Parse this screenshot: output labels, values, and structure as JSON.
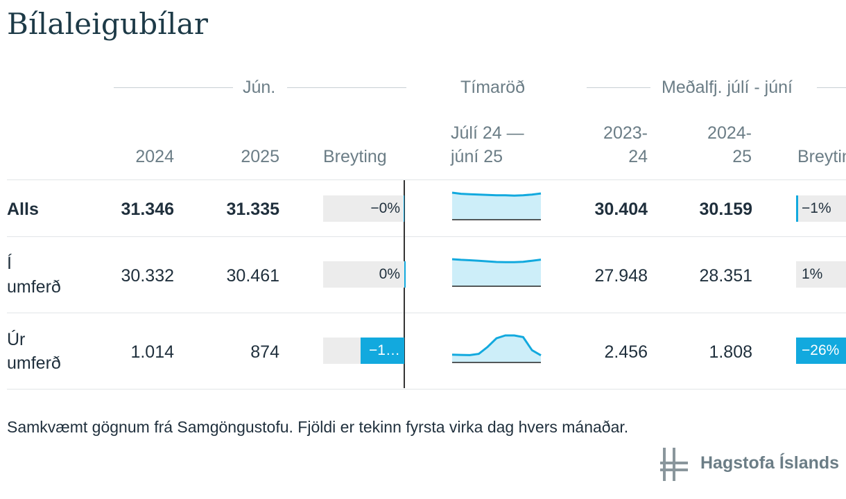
{
  "title": "Bílaleigubílar",
  "groups": {
    "month": "Jún.",
    "series": "Tímaröð",
    "average": "Meðalfj. júlí - júní"
  },
  "columns": {
    "year_a": "2024",
    "year_b": "2025",
    "change": "Breyting",
    "series_line1": "Júlí 24 —",
    "series_line2": "júní 25",
    "avg_a_line1": "2023-",
    "avg_a_line2": "24",
    "avg_b_line1": "2024-",
    "avg_b_line2": "25",
    "avg_change": "Breyting"
  },
  "chart_data": {
    "type": "table",
    "rows": [
      {
        "label": "Alls",
        "jun_2024": "31.346",
        "jun_2025": "31.335",
        "change_text": "−0%",
        "change_value": -0.04,
        "avg_2023_24": "30.404",
        "avg_2024_25": "30.159",
        "avg_change_text": "−1%",
        "avg_change_value": -1,
        "sparkline": [
          31.9,
          31.6,
          31.5,
          31.4,
          31.3,
          31.2,
          31.2,
          31.1,
          31.2,
          31.4,
          31.7
        ]
      },
      {
        "label_line1": "Í",
        "label_line2": "umferð",
        "jun_2024": "30.332",
        "jun_2025": "30.461",
        "change_text": "0%",
        "change_value": 0.4,
        "avg_2023_24": "27.948",
        "avg_2024_25": "28.351",
        "avg_change_text": "1%",
        "avg_change_value": 1,
        "sparkline": [
          30.9,
          30.6,
          30.4,
          30.2,
          29.9,
          29.6,
          29.5,
          29.5,
          29.7,
          30.2,
          30.7
        ]
      },
      {
        "label_line1": "Úr",
        "label_line2": "umferð",
        "jun_2024": "1.014",
        "jun_2025": "874",
        "change_text": "−1…",
        "change_value": -14,
        "avg_2023_24": "2.456",
        "avg_2024_25": "1.808",
        "avg_change_text": "−26%",
        "avg_change_value": -26,
        "sparkline": [
          0.95,
          0.92,
          0.9,
          1.05,
          1.9,
          2.95,
          3.3,
          3.3,
          3.1,
          1.5,
          0.87
        ]
      }
    ]
  },
  "footnote": "Samkvæmt gögnum frá Samgöngustofu. Fjöldi er tekinn fyrsta virka dag hvers mánaðar.",
  "logo_text": "Hagstofa Íslands",
  "colors": {
    "accent": "#12a9de",
    "spark_fill": "#cdeef9",
    "bar_bg": "#ececec"
  },
  "logo_icon": "hagstofa-logo-icon"
}
